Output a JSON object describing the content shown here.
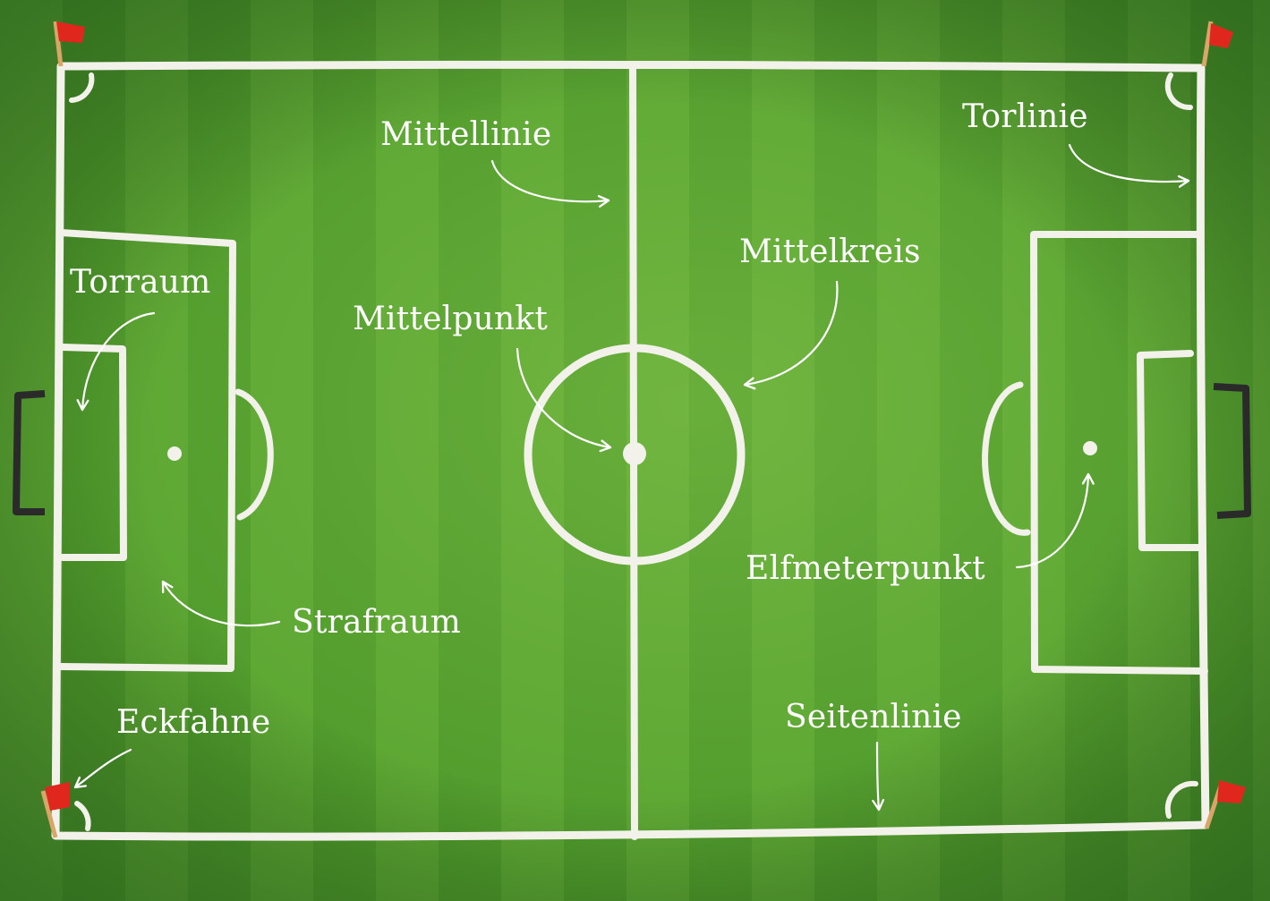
{
  "colors": {
    "grass_dark": "#3f8a25",
    "grass_light": "#6cb43c",
    "chalk": "#f2f2ea",
    "flag": "#e0271e",
    "goal": "#2a2a2a"
  },
  "labels": {
    "mittellinie": "Mittellinie",
    "torlinie": "Torlinie",
    "mittelkreis": "Mittelkreis",
    "torraum": "Torraum",
    "mittelpunkt": "Mittelpunkt",
    "elfmeterpunkt": "Elfmeterpunkt",
    "strafraum": "Strafraum",
    "eckfahne": "Eckfahne",
    "seitenlinie": "Seitenlinie"
  },
  "icons": {
    "corner_flag": "corner-flag-icon",
    "goal": "goal-icon"
  }
}
